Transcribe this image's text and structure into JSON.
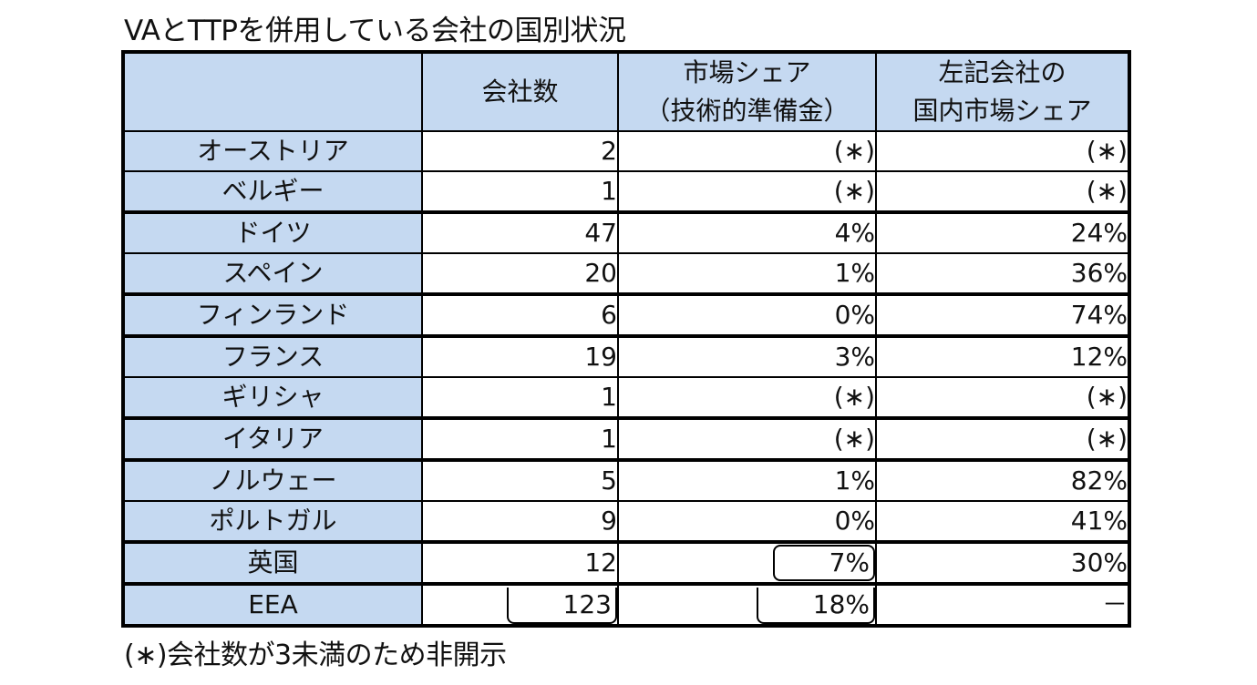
{
  "title": "VAとTTPを併用している会社の国別状況",
  "table": {
    "headers": [
      "",
      "会社数",
      "市場シェア\n（技術的準備金）",
      "左記会社の\n国内市場シェア"
    ],
    "header_lines": {
      "col1": "会社数",
      "col2_line1": "市場シェア",
      "col2_line2": "（技術的準備金）",
      "col3_line1": "左記会社の",
      "col3_line2": "国内市場シェア"
    },
    "rows": [
      {
        "country": "オーストリア",
        "companies": "2",
        "market_share": "(∗)",
        "domestic_share": "(∗)"
      },
      {
        "country": "ベルギー",
        "companies": "1",
        "market_share": "(∗)",
        "domestic_share": "(∗)"
      },
      {
        "country": "ドイツ",
        "companies": "47",
        "market_share": "4%",
        "domestic_share": "24%"
      },
      {
        "country": "スペイン",
        "companies": "20",
        "market_share": "1%",
        "domestic_share": "36%"
      },
      {
        "country": "フィンランド",
        "companies": "6",
        "market_share": "0%",
        "domestic_share": "74%"
      },
      {
        "country": "フランス",
        "companies": "19",
        "market_share": "3%",
        "domestic_share": "12%"
      },
      {
        "country": "ギリシャ",
        "companies": "1",
        "market_share": "(∗)",
        "domestic_share": "(∗)"
      },
      {
        "country": "イタリア",
        "companies": "1",
        "market_share": "(∗)",
        "domestic_share": "(∗)"
      },
      {
        "country": "ノルウェー",
        "companies": "5",
        "market_share": "1%",
        "domestic_share": "82%"
      },
      {
        "country": "ポルトガル",
        "companies": "9",
        "market_share": "0%",
        "domestic_share": "41%"
      },
      {
        "country": "英国",
        "companies": "12",
        "market_share": "7%",
        "domestic_share": "30%"
      }
    ],
    "total": {
      "country": "EEA",
      "companies": "123",
      "market_share": "18%",
      "domestic_share": "－"
    }
  },
  "footnote": "(∗)会社数が3未満のため非開示",
  "colors": {
    "header_bg": "#c5d9f1",
    "border": "#000000",
    "cell_bg": "#ffffff"
  }
}
